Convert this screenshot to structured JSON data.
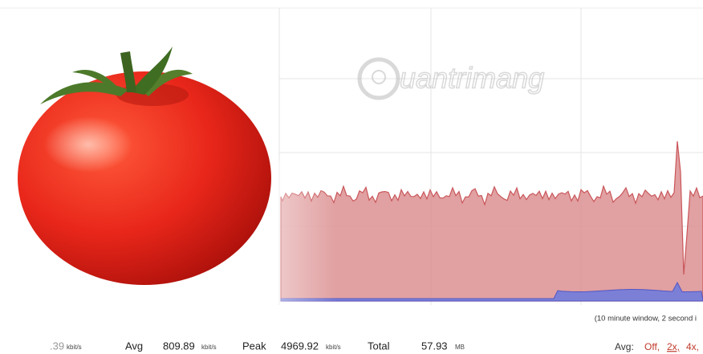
{
  "graph": {
    "watermark": "uantrimang",
    "caption": "(10 minute window, 2 second i"
  },
  "stats": {
    "current_value": ".39",
    "current_unit": "kbit/s",
    "avg_label": "Avg",
    "avg_value": "809.89",
    "avg_unit": "kbit/s",
    "peak_label": "Peak",
    "peak_value": "4969.92",
    "peak_unit": "kbit/s",
    "total_label": "Total",
    "total_value": "57.93",
    "total_unit": "MB"
  },
  "avg_options": {
    "label": "Avg:",
    "options": [
      "Off,",
      "2x,",
      "4x,"
    ]
  }
}
